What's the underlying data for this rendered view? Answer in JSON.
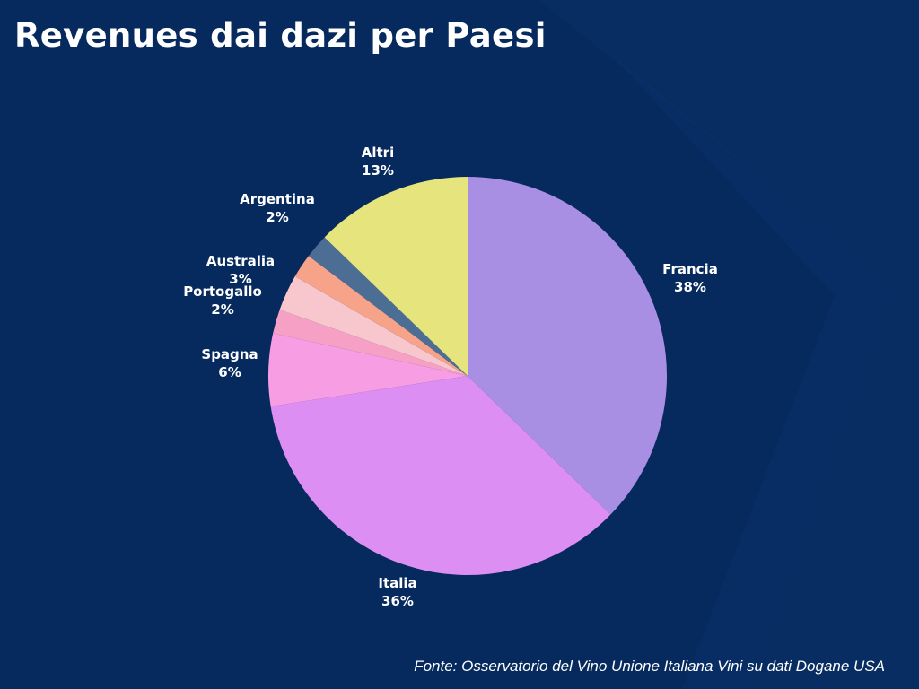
{
  "title": "Revenues dai dazi per Paesi",
  "source": "Fonte: Osservatorio del Vino Unione Italiana Vini su dati Dogane USA",
  "colors": {
    "background": "#062a5e",
    "text": "#ffffff"
  },
  "chart_data": {
    "type": "pie",
    "title": "Revenues dai dazi per Paesi",
    "start": "12 o'clock",
    "direction": "clockwise",
    "slices": [
      {
        "label": "Francia",
        "value_label": "38%",
        "value": 38,
        "color": "#a88fe3"
      },
      {
        "label": "Italia",
        "value_label": "36%",
        "value": 36,
        "color": "#dc8ef2"
      },
      {
        "label": "Spagna",
        "value_label": "6%",
        "value": 6,
        "color": "#f79de3"
      },
      {
        "label": "Portogallo",
        "value_label": "2%",
        "value": 2,
        "color": "#f6a0c6"
      },
      {
        "label": "Australia",
        "value_label": "3%",
        "value": 3,
        "color": "#f8c6cd"
      },
      {
        "label": "Argentina",
        "value_label": "2%",
        "value": 2,
        "color": "#f6a389"
      },
      {
        "label": "",
        "value_label": "",
        "value": 2,
        "color": "#4c6e94"
      },
      {
        "label": "Altri",
        "value_label": "13%",
        "value": 13,
        "color": "#e6e47c"
      }
    ]
  }
}
